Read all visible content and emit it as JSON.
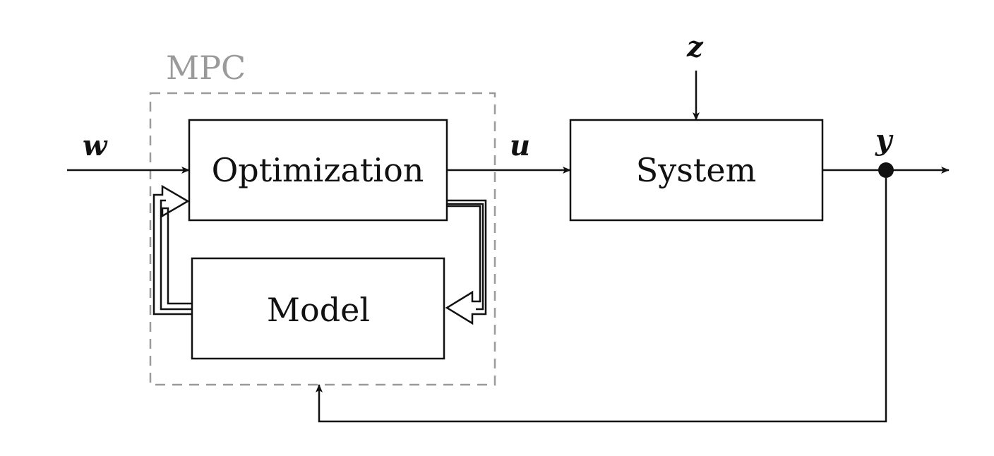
{
  "mpc_label": "MPC",
  "blocks": {
    "optimization": "Optimization",
    "model": "Model",
    "system": "System"
  },
  "signals": {
    "w": "w",
    "u": "u",
    "z": "z",
    "y": "y"
  },
  "colors": {
    "line": "#111111",
    "mpc_group": "#9a9a9a"
  }
}
